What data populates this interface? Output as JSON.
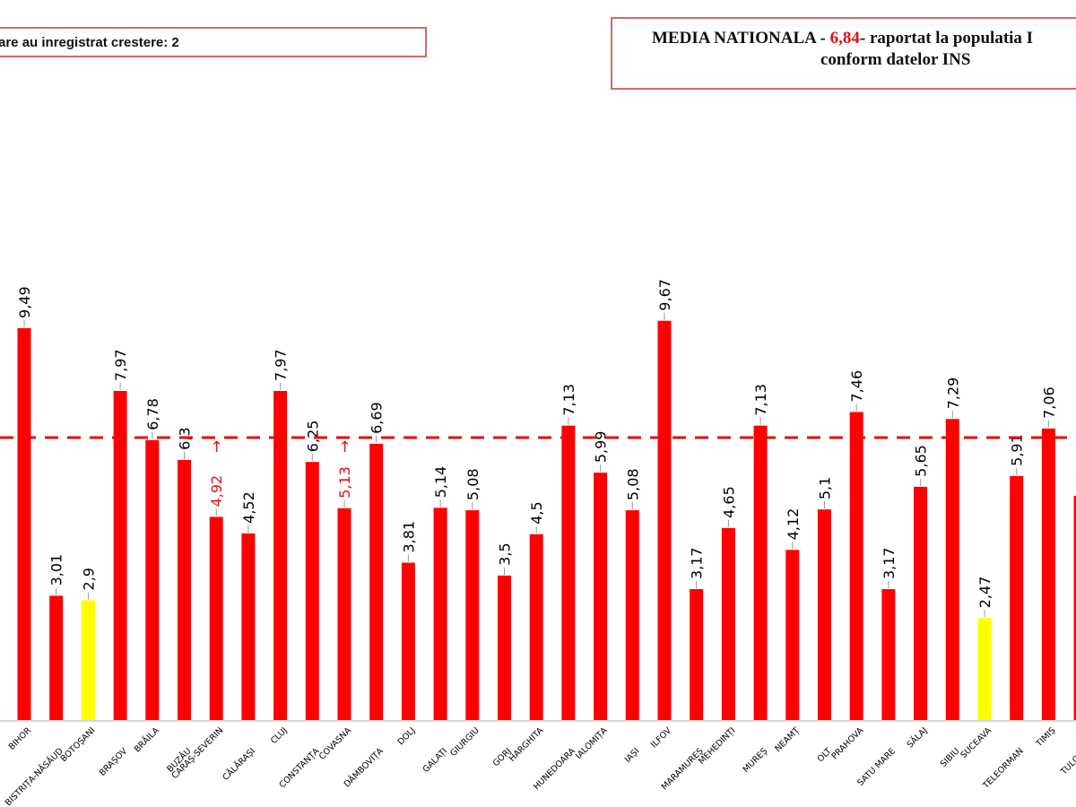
{
  "header": {
    "increase_note": "are au inregistrat crestere: 2",
    "title_prefix": "MEDIA NATIONALA - ",
    "title_value": "6,84",
    "title_suffix": "-  raportat la populatia I",
    "title_line2": "conform datelor INS"
  },
  "chart_data": {
    "type": "bar",
    "title": "MEDIA NATIONALA - 6,84 - raportat la populatia conform datelor INS",
    "categories": [
      "BIHOR",
      "BISTRIȚA-NĂSĂUD",
      "BOTOȘANI",
      "BRAȘOV",
      "BRĂILA",
      "BUZĂU",
      "CARAȘ-SEVERIN",
      "CĂLĂRAȘI",
      "CLUJ",
      "CONSTANȚA",
      "COVASNA",
      "DÂMBOVIȚA",
      "DOLJ",
      "GALAȚI",
      "GIURGIU",
      "GORJ",
      "HARGHITA",
      "HUNEDOARA",
      "IALOMIȚA",
      "IAȘI",
      "ILFOV",
      "MARAMUREȘ",
      "MEHEDINȚI",
      "MUREȘ",
      "NEAMȚ",
      "OLT",
      "PRAHOVA",
      "SATU MARE",
      "SĂLAJ",
      "SIBIU",
      "SUCEAVA",
      "TELEORMAN",
      "TIMIȘ",
      "TULCEA"
    ],
    "values": [
      9.49,
      3.01,
      2.9,
      7.97,
      6.78,
      6.3,
      4.92,
      4.52,
      7.97,
      6.25,
      5.13,
      6.69,
      3.81,
      5.14,
      5.08,
      3.5,
      4.5,
      7.13,
      5.99,
      5.08,
      9.67,
      3.17,
      4.65,
      7.13,
      4.12,
      5.1,
      7.46,
      3.17,
      5.65,
      7.29,
      2.47,
      5.91,
      7.06,
      5.43
    ],
    "value_labels": [
      "9,49",
      "3,01",
      "2,9",
      "7,97",
      "6,78",
      "6,3",
      "4,92",
      "4,52",
      "7,97",
      "6,25",
      "5,13",
      "6,69",
      "3,81",
      "5,14",
      "5,08",
      "3,5",
      "4,5",
      "7,13",
      "5,99",
      "5,08",
      "9,67",
      "3,17",
      "4,65",
      "7,13",
      "4,12",
      "5,1",
      "7,46",
      "3,17",
      "5,65",
      "7,29",
      "2,47",
      "5,91",
      "7,06",
      ""
    ],
    "bar_colors": [
      "red",
      "red",
      "yellow",
      "red",
      "red",
      "red",
      "red",
      "red",
      "red",
      "red",
      "red",
      "red",
      "red",
      "red",
      "red",
      "red",
      "red",
      "red",
      "red",
      "red",
      "red",
      "red",
      "red",
      "red",
      "red",
      "red",
      "red",
      "red",
      "red",
      "red",
      "yellow",
      "red",
      "red",
      "red"
    ],
    "increased": [
      "CARAȘ-SEVERIN",
      "COVASNA"
    ],
    "reference_line": {
      "label": "MEDIA NATIONALA",
      "value": 6.84
    },
    "colors": {
      "red": "#ff0000",
      "yellow": "#ffff00",
      "line": "#e01010",
      "highlight_text": "#e01010"
    },
    "ylim": [
      0,
      10
    ],
    "grid": false,
    "legend": "none",
    "xlabel": "",
    "ylabel": ""
  }
}
